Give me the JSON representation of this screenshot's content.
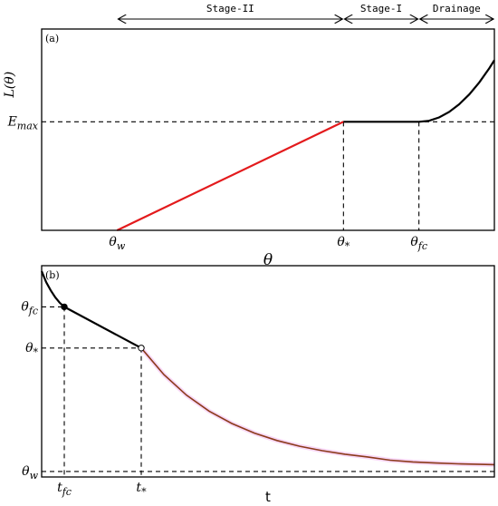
{
  "chart_data": [
    {
      "type": "line",
      "panel_label": "(a)",
      "xlabel": "θ",
      "ylabel": "L(θ)",
      "ytick_label": "E_max",
      "x_ticks": [
        {
          "id": "theta_w",
          "label": "θ_w",
          "x": 0.2
        },
        {
          "id": "theta_star",
          "label": "θ_*",
          "x": 0.65
        },
        {
          "id": "theta_fc",
          "label": "θ_fc",
          "x": 0.8
        }
      ],
      "xlim": [
        0.05,
        0.95
      ],
      "ylim": [
        0,
        1.15
      ],
      "E_max": 0.62,
      "stages": [
        {
          "label": "Stage-II",
          "x_start": 0.2,
          "x_end": 0.65
        },
        {
          "label": "Stage-I",
          "x_start": 0.65,
          "x_end": 0.8
        },
        {
          "label": "Drainage",
          "x_start": 0.8,
          "x_end": 0.95
        }
      ],
      "series": [
        {
          "color": "#e31a1c",
          "points": [
            [
              0.2,
              0.0
            ],
            [
              0.65,
              0.62
            ]
          ]
        },
        {
          "color": "#000000",
          "points": [
            [
              0.65,
              0.62
            ],
            [
              0.8,
              0.62
            ]
          ]
        },
        {
          "color": "#000000",
          "points": [
            [
              0.8,
              0.62
            ],
            [
              0.82,
              0.626
            ],
            [
              0.84,
              0.645
            ],
            [
              0.86,
              0.676
            ],
            [
              0.88,
              0.72
            ],
            [
              0.9,
              0.776
            ],
            [
              0.92,
              0.845
            ],
            [
              0.94,
              0.926
            ],
            [
              0.95,
              0.972
            ]
          ]
        }
      ],
      "guides": {
        "horizontal_at_y": 0.62,
        "vertical_at_x": [
          0.65,
          0.8
        ]
      }
    },
    {
      "type": "line",
      "panel_label": "(b)",
      "xlabel": "t",
      "x_ticks": [
        {
          "id": "t_fc",
          "label": "t_fc",
          "x": 0.5
        },
        {
          "id": "t_star",
          "label": "t_*",
          "x": 2.2
        }
      ],
      "y_ticks": [
        {
          "id": "theta_fc",
          "label": "θ_fc",
          "y": 0.8
        },
        {
          "id": "theta_star",
          "label": "θ_*",
          "y": 0.65
        },
        {
          "id": "theta_w",
          "label": "θ_w",
          "y": 0.2
        }
      ],
      "xlim": [
        0,
        10
      ],
      "ylim": [
        0.18,
        0.95
      ],
      "series": [
        {
          "color": "#000000",
          "points": [
            [
              0.0,
              0.93
            ],
            [
              0.1,
              0.89
            ],
            [
              0.2,
              0.86
            ],
            [
              0.3,
              0.835
            ],
            [
              0.4,
              0.815
            ],
            [
              0.5,
              0.8
            ]
          ]
        },
        {
          "color": "#000000",
          "points": [
            [
              0.5,
              0.8
            ],
            [
              2.2,
              0.65
            ]
          ]
        },
        {
          "color": "#8b3a1a",
          "points": [
            [
              2.2,
              0.65
            ],
            [
              2.7,
              0.553
            ],
            [
              3.2,
              0.478
            ],
            [
              3.7,
              0.42
            ],
            [
              4.2,
              0.375
            ],
            [
              4.7,
              0.34
            ],
            [
              5.2,
              0.313
            ],
            [
              5.7,
              0.292
            ],
            [
              6.2,
              0.276
            ],
            [
              6.7,
              0.263
            ],
            [
              7.2,
              0.253
            ],
            [
              7.7,
              0.241
            ],
            [
              8.2,
              0.235
            ],
            [
              8.7,
              0.231
            ],
            [
              9.2,
              0.228
            ],
            [
              9.7,
              0.226
            ],
            [
              10.0,
              0.225
            ]
          ]
        }
      ],
      "markers": [
        {
          "x": 0.5,
          "y": 0.8,
          "style": "filled"
        },
        {
          "x": 2.2,
          "y": 0.65,
          "style": "open"
        }
      ],
      "guides": {
        "horizontal_at_y": 0.2
      }
    }
  ]
}
